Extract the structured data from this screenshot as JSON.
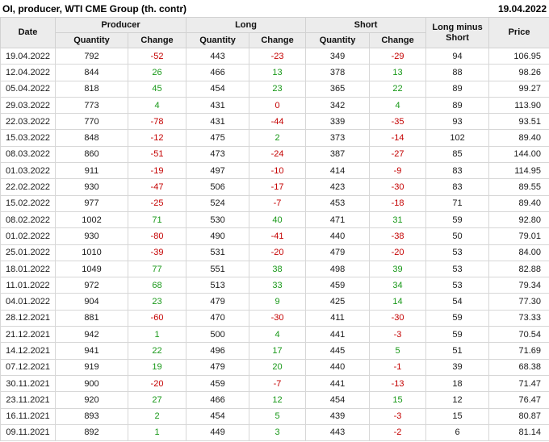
{
  "title": "OI, producer, WTI CME Group (th. contr)",
  "report_date": "19.04.2022",
  "colors": {
    "negative_change": "#c40000",
    "positive_change": "#189818",
    "header_background": "#ececec",
    "grid_border": "#d7d7d7"
  },
  "header": {
    "date": "Date",
    "producer": "Producer",
    "long": "Long",
    "short": "Short",
    "long_minus_short": "Long minus Short",
    "price": "Price",
    "quantity": "Quantity",
    "change": "Change"
  },
  "chart_data": {
    "type": "table",
    "title": "OI, producer, WTI CME Group (th. contr)",
    "as_of_date": "19.04.2022",
    "column_groups": [
      "Date",
      "Producer",
      "Long",
      "Short",
      "Long minus Short",
      "Price"
    ],
    "columns": [
      "Date",
      "Producer Quantity",
      "Producer Change",
      "Long Quantity",
      "Long Change",
      "Short Quantity",
      "Short Change",
      "Long minus Short",
      "Price"
    ],
    "rows": [
      [
        "19.04.2022",
        "792",
        "-52",
        "443",
        "-23",
        "349",
        "-29",
        "94",
        "106.95"
      ],
      [
        "12.04.2022",
        "844",
        "26",
        "466",
        "13",
        "378",
        "13",
        "88",
        "98.26"
      ],
      [
        "05.04.2022",
        "818",
        "45",
        "454",
        "23",
        "365",
        "22",
        "89",
        "99.27"
      ],
      [
        "29.03.2022",
        "773",
        "4",
        "431",
        "0",
        "342",
        "4",
        "89",
        "113.90"
      ],
      [
        "22.03.2022",
        "770",
        "-78",
        "431",
        "-44",
        "339",
        "-35",
        "93",
        "93.51"
      ],
      [
        "15.03.2022",
        "848",
        "-12",
        "475",
        "2",
        "373",
        "-14",
        "102",
        "89.40"
      ],
      [
        "08.03.2022",
        "860",
        "-51",
        "473",
        "-24",
        "387",
        "-27",
        "85",
        "144.00"
      ],
      [
        "01.03.2022",
        "911",
        "-19",
        "497",
        "-10",
        "414",
        "-9",
        "83",
        "114.95"
      ],
      [
        "22.02.2022",
        "930",
        "-47",
        "506",
        "-17",
        "423",
        "-30",
        "83",
        "89.55"
      ],
      [
        "15.02.2022",
        "977",
        "-25",
        "524",
        "-7",
        "453",
        "-18",
        "71",
        "89.40"
      ],
      [
        "08.02.2022",
        "1002",
        "71",
        "530",
        "40",
        "471",
        "31",
        "59",
        "92.80"
      ],
      [
        "01.02.2022",
        "930",
        "-80",
        "490",
        "-41",
        "440",
        "-38",
        "50",
        "79.01"
      ],
      [
        "25.01.2022",
        "1010",
        "-39",
        "531",
        "-20",
        "479",
        "-20",
        "53",
        "84.00"
      ],
      [
        "18.01.2022",
        "1049",
        "77",
        "551",
        "38",
        "498",
        "39",
        "53",
        "82.88"
      ],
      [
        "11.01.2022",
        "972",
        "68",
        "513",
        "33",
        "459",
        "34",
        "53",
        "79.34"
      ],
      [
        "04.01.2022",
        "904",
        "23",
        "479",
        "9",
        "425",
        "14",
        "54",
        "77.30"
      ],
      [
        "28.12.2021",
        "881",
        "-60",
        "470",
        "-30",
        "411",
        "-30",
        "59",
        "73.33"
      ],
      [
        "21.12.2021",
        "942",
        "1",
        "500",
        "4",
        "441",
        "-3",
        "59",
        "70.54"
      ],
      [
        "14.12.2021",
        "941",
        "22",
        "496",
        "17",
        "445",
        "5",
        "51",
        "71.69"
      ],
      [
        "07.12.2021",
        "919",
        "19",
        "479",
        "20",
        "440",
        "-1",
        "39",
        "68.38"
      ],
      [
        "30.11.2021",
        "900",
        "-20",
        "459",
        "-7",
        "441",
        "-13",
        "18",
        "71.47"
      ],
      [
        "23.11.2021",
        "920",
        "27",
        "466",
        "12",
        "454",
        "15",
        "12",
        "76.47"
      ],
      [
        "16.11.2021",
        "893",
        "2",
        "454",
        "5",
        "439",
        "-3",
        "15",
        "80.87"
      ],
      [
        "09.11.2021",
        "892",
        "1",
        "449",
        "3",
        "443",
        "-2",
        "6",
        "81.14"
      ]
    ]
  }
}
